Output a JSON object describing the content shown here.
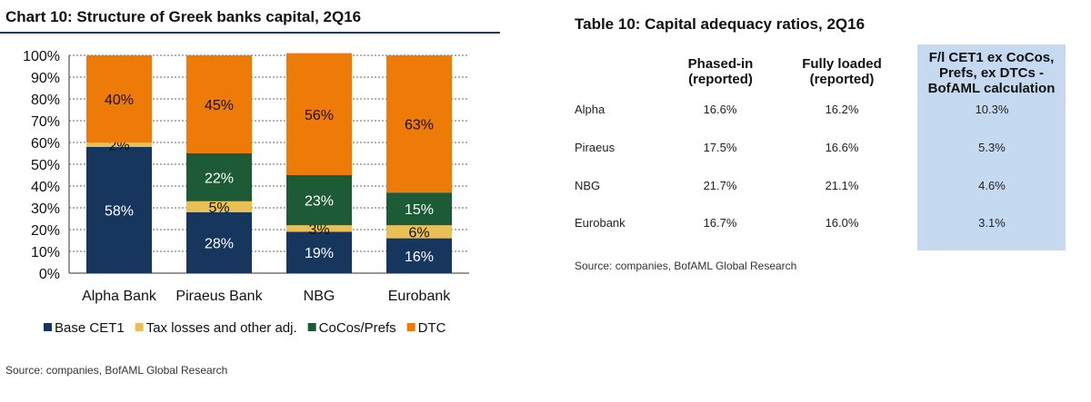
{
  "chart_title": "Chart 10: Structure of Greek banks capital, 2Q16",
  "chart_source": "Source: companies, BofAML Global Research",
  "chart_data": {
    "type": "bar",
    "stacked": true,
    "title": "Chart 10: Structure of Greek banks capital, 2Q16",
    "categories": [
      "Alpha Bank",
      "Piraeus Bank",
      "NBG",
      "Eurobank"
    ],
    "series": [
      {
        "name": "Base CET1",
        "color": "#17365d",
        "values": [
          58,
          28,
          19,
          16
        ],
        "labels": [
          "58%",
          "28%",
          "19%",
          "16%"
        ]
      },
      {
        "name": "Tax losses and other adj.",
        "color": "#e8c055",
        "values": [
          2,
          5,
          3,
          6
        ],
        "labels": [
          "2%",
          "5%",
          "3%",
          "6%"
        ]
      },
      {
        "name": "CoCos/Prefs",
        "color": "#1d5b36",
        "values": [
          0,
          22,
          23,
          15
        ],
        "labels": [
          "",
          "22%",
          "23%",
          "15%"
        ]
      },
      {
        "name": "DTC",
        "color": "#ee7a07",
        "values": [
          40,
          45,
          56,
          63
        ],
        "labels": [
          "40%",
          "45%",
          "56%",
          "63%"
        ]
      }
    ],
    "ylim": [
      0,
      100
    ],
    "yticks": [
      "0%",
      "10%",
      "20%",
      "30%",
      "40%",
      "50%",
      "60%",
      "70%",
      "80%",
      "90%",
      "100%"
    ],
    "grid": true,
    "legend": "bottom"
  },
  "table": {
    "title": "Table 10: Capital adequacy ratios, 2Q16",
    "headers": [
      "Phased-in (reported)",
      "Fully loaded (reported)",
      "F/l CET1 ex CoCos, Prefs, ex DTCs - BofAML calculation"
    ],
    "header_lines": [
      [
        "Phased-in",
        "(reported)"
      ],
      [
        "Fully loaded",
        "(reported)"
      ],
      [
        "F/l CET1 ex CoCos,",
        "Prefs, ex DTCs -",
        "BofAML calculation"
      ]
    ],
    "rows": [
      {
        "label": "Alpha",
        "values": [
          "16.6%",
          "16.2%",
          "10.3%"
        ]
      },
      {
        "label": "Piraeus",
        "values": [
          "17.5%",
          "16.6%",
          "5.3%"
        ]
      },
      {
        "label": "NBG",
        "values": [
          "21.7%",
          "21.1%",
          "4.6%"
        ]
      },
      {
        "label": "Eurobank",
        "values": [
          "16.7%",
          "16.0%",
          "3.1%"
        ]
      }
    ],
    "highlight_color": "#c5d9f1",
    "source": "Source: companies, BofAML Global Research"
  }
}
